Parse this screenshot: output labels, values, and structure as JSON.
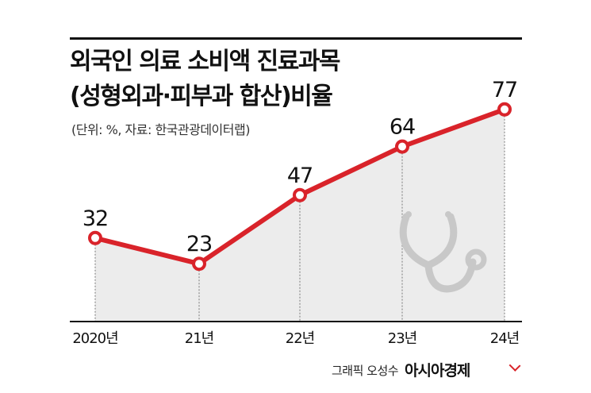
{
  "header": {
    "title_line1": "외국인 의료 소비액 진료과목",
    "title_line2": "(성형외과·피부과 합산)비율",
    "subtitle": "(단위: %, 자료: 한국관광데이터랩)"
  },
  "chart_data": {
    "type": "area",
    "categories": [
      "2020년",
      "21년",
      "22년",
      "23년",
      "24년"
    ],
    "series": [
      {
        "values": [
          32,
          23,
          47,
          64,
          77
        ]
      }
    ],
    "ylim": [
      0,
      80
    ],
    "title": "외국인 의료 소비액 진료과목 (성형외과·피부과 합산)비율",
    "xlabel": "",
    "ylabel": "",
    "grid": false,
    "legend": "none",
    "colors": {
      "line": "#d9232a",
      "fill": "#ececec",
      "guide": "#777777",
      "icon": "#c8c8c8"
    },
    "icon": "stethoscope-icon"
  },
  "footer": {
    "credit": "그래픽 오성수",
    "brand": "아시아경제"
  }
}
